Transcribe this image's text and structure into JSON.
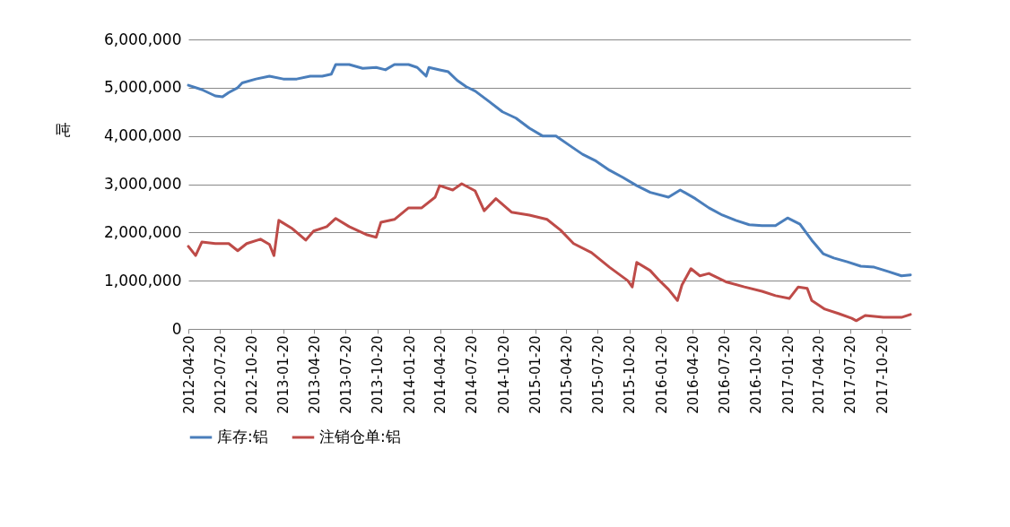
{
  "chart_data": {
    "type": "line",
    "ylabel": "吨",
    "xlim": [
      "2012-04-20",
      "2018-01-11"
    ],
    "xticks": [
      "2012-04-20",
      "2012-07-20",
      "2012-10-20",
      "2013-01-20",
      "2013-04-20",
      "2013-07-20",
      "2013-10-20",
      "2014-01-20",
      "2014-04-20",
      "2014-07-20",
      "2014-10-20",
      "2015-01-20",
      "2015-04-20",
      "2015-07-20",
      "2015-10-20",
      "2016-01-20",
      "2016-04-20",
      "2016-07-20",
      "2016-10-20",
      "2017-01-20",
      "2017-04-20",
      "2017-07-20",
      "2017-10-20"
    ],
    "ylim": [
      0,
      6000000
    ],
    "yticks": [
      0,
      {
        "value": 1000000,
        "label": "1,000,000"
      },
      {
        "value": 2000000,
        "label": "2,000,000"
      },
      {
        "value": 3000000,
        "label": "3,000,000"
      },
      {
        "value": 4000000,
        "label": "4,000,000"
      },
      {
        "value": 5000000,
        "label": "5,000,000"
      },
      {
        "value": 6000000,
        "label": "6,000,000"
      }
    ],
    "grid": "y",
    "legend": "bottom",
    "series": [
      {
        "name": "库存:铝",
        "color": "#4a7ebb",
        "x": [
          "2012-04-20",
          "2012-05-29",
          "2012-07-07",
          "2012-07-28",
          "2012-08-15",
          "2012-09-10",
          "2012-09-23",
          "2012-11-02",
          "2012-12-11",
          "2013-01-20",
          "2013-02-28",
          "2013-04-08",
          "2013-05-13",
          "2013-06-08",
          "2013-06-21",
          "2013-07-30",
          "2013-09-07",
          "2013-10-16",
          "2013-11-12",
          "2013-12-08",
          "2014-01-18",
          "2014-02-12",
          "2014-03-10",
          "2014-03-18",
          "2014-04-18",
          "2014-05-13",
          "2014-06-08",
          "2014-07-04",
          "2014-07-30",
          "2014-09-07",
          "2014-10-17",
          "2014-11-25",
          "2015-01-03",
          "2015-02-10",
          "2015-03-21",
          "2015-04-28",
          "2015-06-06",
          "2015-07-15",
          "2015-08-23",
          "2015-10-01",
          "2015-11-10",
          "2015-12-19",
          "2016-02-10",
          "2016-03-15",
          "2016-04-28",
          "2016-06-06",
          "2016-07-15",
          "2016-08-23",
          "2016-10-01",
          "2016-11-07",
          "2016-12-16",
          "2017-01-20",
          "2017-02-25",
          "2017-03-31",
          "2017-05-03",
          "2017-06-03",
          "2017-07-12",
          "2017-08-20",
          "2017-09-28",
          "2017-11-07",
          "2017-12-16",
          "2018-01-11"
        ],
        "values": [
          5050000,
          4960000,
          4830000,
          4810000,
          4900000,
          5000000,
          5100000,
          5180000,
          5240000,
          5180000,
          5180000,
          5240000,
          5240000,
          5280000,
          5480000,
          5480000,
          5400000,
          5420000,
          5370000,
          5480000,
          5480000,
          5420000,
          5240000,
          5420000,
          5370000,
          5330000,
          5150000,
          5020000,
          4930000,
          4720000,
          4500000,
          4370000,
          4160000,
          4000000,
          4000000,
          3810000,
          3620000,
          3480000,
          3290000,
          3140000,
          2970000,
          2830000,
          2730000,
          2880000,
          2700000,
          2510000,
          2360000,
          2250000,
          2160000,
          2140000,
          2140000,
          2300000,
          2170000,
          1840000,
          1560000,
          1470000,
          1390000,
          1300000,
          1280000,
          1190000,
          1100000,
          1120000
        ]
      },
      {
        "name": "注销仓单:铝",
        "color": "#be4b48",
        "x": [
          "2012-04-20",
          "2012-05-11",
          "2012-05-29",
          "2012-07-07",
          "2012-08-15",
          "2012-09-10",
          "2012-10-06",
          "2012-11-15",
          "2012-12-11",
          "2012-12-24",
          "2013-01-07",
          "2013-02-15",
          "2013-03-26",
          "2013-04-18",
          "2013-05-26",
          "2013-06-21",
          "2013-07-30",
          "2013-09-20",
          "2013-10-16",
          "2013-10-30",
          "2013-12-08",
          "2014-01-18",
          "2014-02-25",
          "2014-04-05",
          "2014-04-18",
          "2014-05-26",
          "2014-06-21",
          "2014-07-30",
          "2014-08-25",
          "2014-09-28",
          "2014-11-12",
          "2015-01-03",
          "2015-02-23",
          "2015-04-03",
          "2015-05-11",
          "2015-07-02",
          "2015-08-23",
          "2015-10-15",
          "2015-10-28",
          "2015-11-10",
          "2015-12-19",
          "2016-01-15",
          "2016-02-10",
          "2016-03-07",
          "2016-03-20",
          "2016-04-15",
          "2016-05-11",
          "2016-06-06",
          "2016-07-28",
          "2016-09-17",
          "2016-11-07",
          "2016-12-16",
          "2017-01-25",
          "2017-02-20",
          "2017-03-18",
          "2017-03-31",
          "2017-05-08",
          "2017-06-16",
          "2017-07-25",
          "2017-08-07",
          "2017-09-02",
          "2017-10-25",
          "2017-12-16",
          "2018-01-11"
        ],
        "values": [
          1710000,
          1520000,
          1800000,
          1770000,
          1770000,
          1620000,
          1770000,
          1860000,
          1750000,
          1520000,
          2250000,
          2080000,
          1840000,
          2030000,
          2120000,
          2290000,
          2120000,
          1950000,
          1900000,
          2210000,
          2270000,
          2510000,
          2510000,
          2730000,
          2970000,
          2880000,
          3010000,
          2860000,
          2450000,
          2700000,
          2420000,
          2360000,
          2270000,
          2050000,
          1770000,
          1580000,
          1280000,
          1000000,
          870000,
          1380000,
          1210000,
          1000000,
          820000,
          590000,
          910000,
          1250000,
          1100000,
          1150000,
          970000,
          870000,
          780000,
          690000,
          630000,
          870000,
          840000,
          590000,
          410000,
          320000,
          220000,
          170000,
          280000,
          240000,
          240000,
          300000
        ]
      }
    ]
  }
}
